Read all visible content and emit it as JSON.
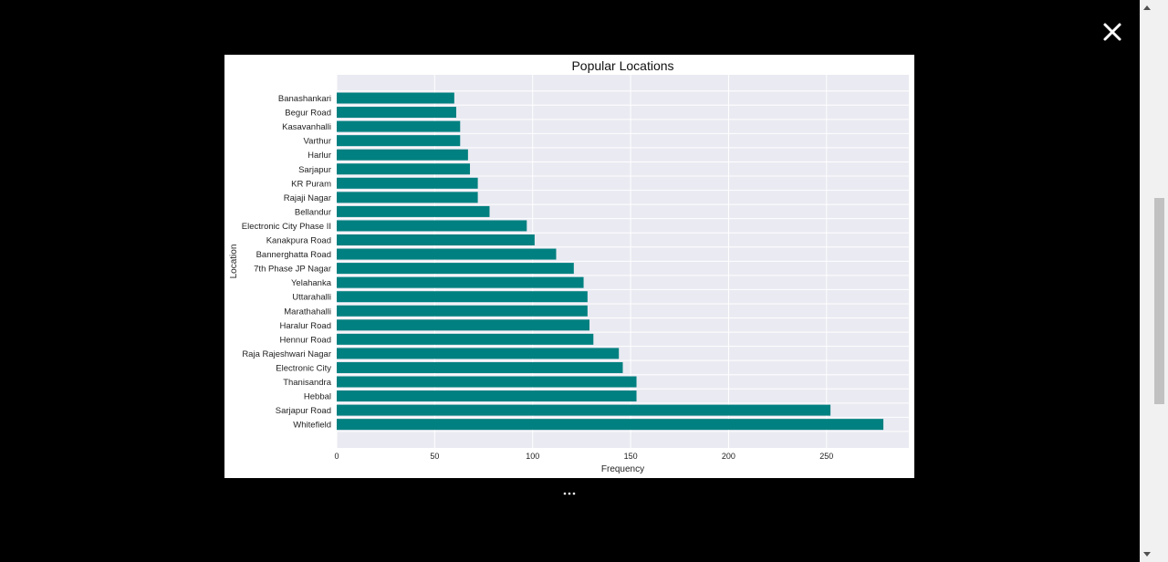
{
  "viewer": {
    "close_icon": "close-icon",
    "more_icon": "more-horizontal-icon"
  },
  "colors": {
    "bar": "#008080",
    "plot_bg": "#eaeaf2",
    "grid": "#ffffff",
    "backdrop": "#000000"
  },
  "chart_data": {
    "type": "bar",
    "orientation": "horizontal",
    "title": "Popular Locations",
    "xlabel": "Frequency",
    "ylabel": "Location",
    "xlim": [
      0,
      292
    ],
    "xticks": [
      0,
      50,
      100,
      150,
      200,
      250
    ],
    "grid": true,
    "categories": [
      "Banashankari",
      "Begur Road",
      "Kasavanhalli",
      "Varthur",
      "Harlur",
      "Sarjapur",
      "KR Puram",
      "Rajaji Nagar",
      "Bellandur",
      "Electronic City Phase II",
      "Kanakpura Road",
      "Bannerghatta Road",
      "7th Phase JP Nagar",
      "Yelahanka",
      "Uttarahalli",
      "Marathahalli",
      "Haralur Road",
      "Hennur Road",
      "Raja Rajeshwari Nagar",
      "Electronic City",
      "Thanisandra",
      "Hebbal",
      "Sarjapur  Road",
      "Whitefield"
    ],
    "values": [
      60,
      61,
      63,
      63,
      67,
      68,
      72,
      72,
      78,
      97,
      101,
      112,
      121,
      126,
      128,
      128,
      129,
      131,
      144,
      146,
      153,
      153,
      252,
      279
    ]
  }
}
